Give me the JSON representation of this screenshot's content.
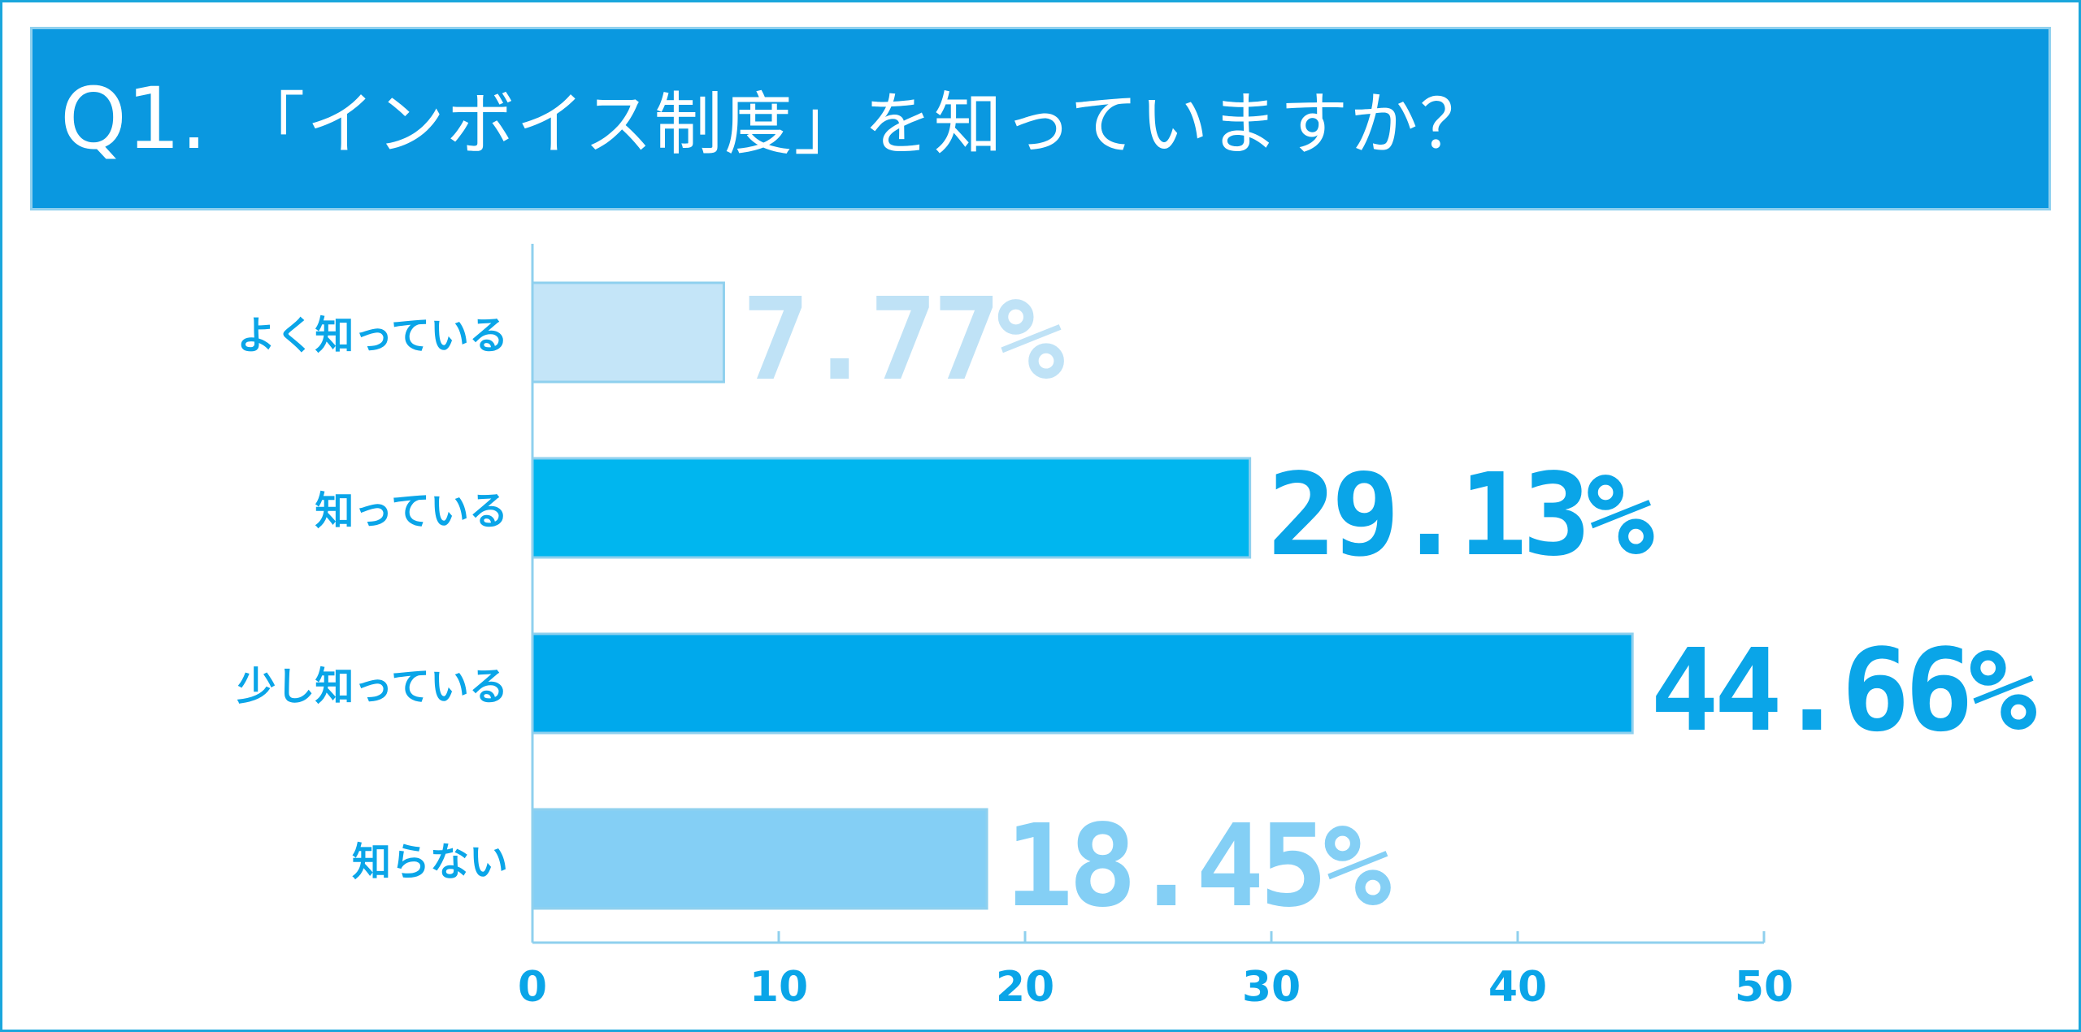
{
  "header": {
    "question_number": "Q1.",
    "question_text": "「インボイス制度」を知っていますか？",
    "background_color": "#0a98e0"
  },
  "chart_data": {
    "type": "bar",
    "orientation": "horizontal",
    "categories": [
      "よく知っている",
      "知っている",
      "少し知っている",
      "知らない"
    ],
    "values": [
      7.77,
      29.13,
      44.66,
      18.45
    ],
    "value_labels": [
      "7.77%",
      "29.13%",
      "44.66%",
      "18.45%"
    ],
    "bar_colors": [
      "#c4e5f8",
      "#00b6ef",
      "#00a9ec",
      "#84cff5"
    ],
    "label_colors": [
      "#bfe2f6",
      "#0aa5e8",
      "#0aa5e8",
      "#84cff5"
    ],
    "xlim": [
      0,
      50
    ],
    "x_ticks": [
      "0",
      "10",
      "20",
      "30",
      "40",
      "50"
    ],
    "x_tick_values": [
      0,
      10,
      20,
      30,
      40,
      50
    ],
    "grid": false,
    "category_label_color": "#0aa5e8",
    "axis_color": "#8fd0ee"
  }
}
